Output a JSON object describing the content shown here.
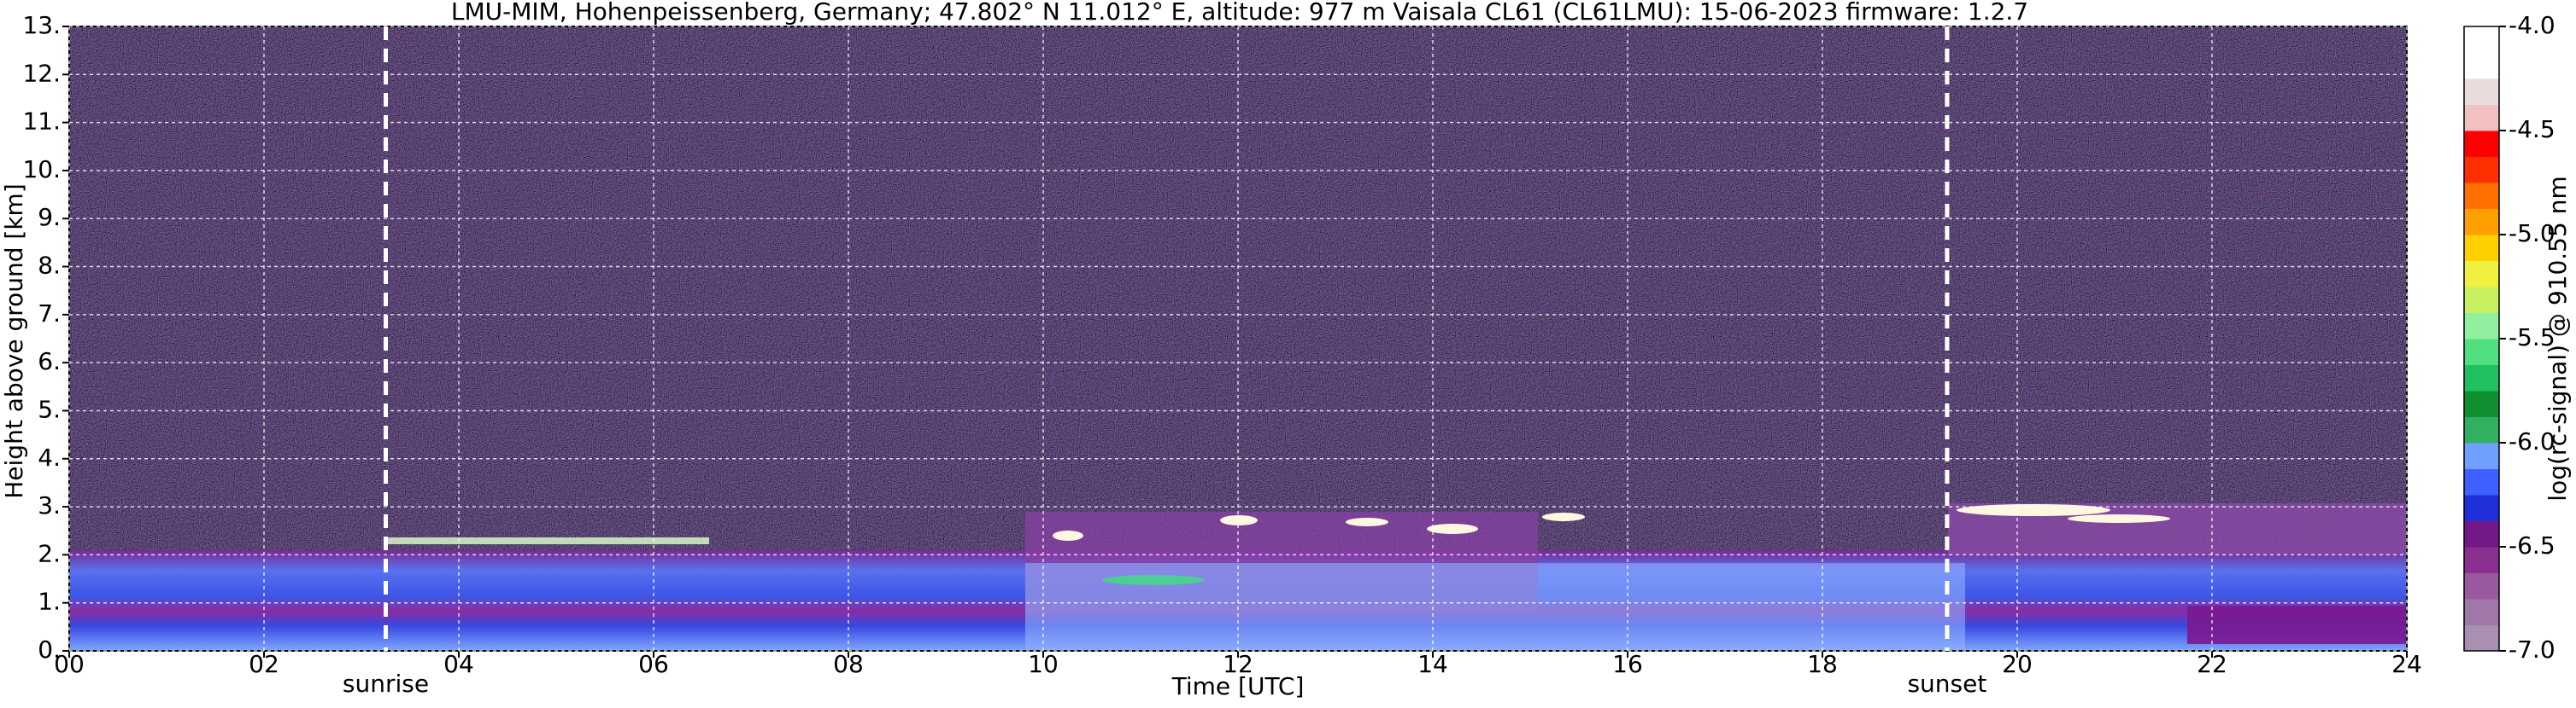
{
  "chart_data": {
    "type": "heatmap",
    "title": "LMU-MIM, Hohenpeissenberg, Germany; 47.802° N 11.012° E, altitude: 977 m    Vaisala CL61 (CL61LMU): 15-06-2023    firmware: 1.2.7",
    "x_label": "Time [UTC]",
    "y_label": "Height above ground [km]",
    "xlim": [
      0,
      24
    ],
    "xticks": [
      {
        "value": 0,
        "label": "00"
      },
      {
        "value": 2,
        "label": "02"
      },
      {
        "value": 4,
        "label": "04"
      },
      {
        "value": 6,
        "label": "06"
      },
      {
        "value": 8,
        "label": "08"
      },
      {
        "value": 10,
        "label": "10"
      },
      {
        "value": 12,
        "label": "12"
      },
      {
        "value": 14,
        "label": "14"
      },
      {
        "value": 16,
        "label": "16"
      },
      {
        "value": 18,
        "label": "18"
      },
      {
        "value": 20,
        "label": "20"
      },
      {
        "value": 22,
        "label": "22"
      },
      {
        "value": 24,
        "label": "24"
      }
    ],
    "ylim": [
      0,
      13
    ],
    "yticks": [
      {
        "value": 0,
        "label": "0."
      },
      {
        "value": 1,
        "label": "1."
      },
      {
        "value": 2,
        "label": "2."
      },
      {
        "value": 3,
        "label": "3."
      },
      {
        "value": 4,
        "label": "4."
      },
      {
        "value": 5,
        "label": "5."
      },
      {
        "value": 6,
        "label": "6."
      },
      {
        "value": 7,
        "label": "7."
      },
      {
        "value": 8,
        "label": "8."
      },
      {
        "value": 9,
        "label": "9."
      },
      {
        "value": 10,
        "label": "10."
      },
      {
        "value": 11,
        "label": "11."
      },
      {
        "value": 12,
        "label": "12."
      },
      {
        "value": 13,
        "label": "13."
      }
    ],
    "grid": true,
    "annotations": [
      {
        "text": "sunrise",
        "x": 3.25
      },
      {
        "text": "sunset",
        "x": 19.28
      }
    ],
    "colorbar": {
      "label": "log(rc-signal) @ 910.55 nm",
      "clim": [
        -7,
        -4
      ],
      "ticks": [
        {
          "value": -7,
          "label": "-7.0"
        },
        {
          "value": -6.5,
          "label": "-6.5"
        },
        {
          "value": -6,
          "label": "-6.0"
        },
        {
          "value": -5.5,
          "label": "-5.5"
        },
        {
          "value": -5,
          "label": "-5.0"
        },
        {
          "value": -4.5,
          "label": "-4.5"
        },
        {
          "value": -4,
          "label": "-4.0"
        }
      ],
      "colors": [
        "#a890b0",
        "#a078a8",
        "#9a5aa0",
        "#8a3090",
        "#741888",
        "#2030d8",
        "#4060ff",
        "#70a0ff",
        "#30b060",
        "#109030",
        "#20c060",
        "#50e080",
        "#90f0a0",
        "#c8f060",
        "#f0f040",
        "#ffd000",
        "#ffa000",
        "#ff7000",
        "#ff3000",
        "#ff0000",
        "#f2c0c0",
        "#e8dcdc",
        "#ffffff",
        "#ffffff"
      ]
    }
  }
}
